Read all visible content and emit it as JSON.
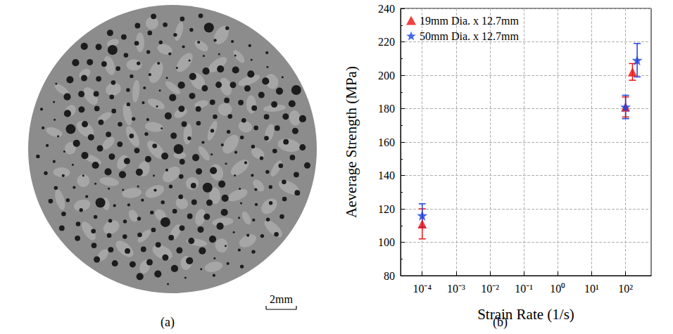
{
  "image": {
    "panel_label": "(a)",
    "scale_bar": "2mm"
  },
  "chart_data": {
    "type": "scatter",
    "panel_label": "(b)",
    "xlabel": "Strain Rate (1/s)",
    "ylabel": "Aeverage Strength (MPa)",
    "log": "x",
    "xlim": [
      2.3e-05,
      570
    ],
    "xticks": [
      {
        "value": 0.0001,
        "label": "10⁻⁴"
      },
      {
        "value": 0.001,
        "label": "10⁻³"
      },
      {
        "value": 0.01,
        "label": "10⁻²"
      },
      {
        "value": 0.1,
        "label": "10⁻¹"
      },
      {
        "value": 1,
        "label": "10⁰"
      },
      {
        "value": 10,
        "label": "10¹"
      },
      {
        "value": 100,
        "label": "10²"
      }
    ],
    "ylim": [
      80,
      240
    ],
    "yticks": [
      80,
      100,
      120,
      140,
      160,
      180,
      200,
      220,
      240
    ],
    "grid": true,
    "legend": "upper left",
    "series": [
      {
        "name": "19mm Dia. x 12.7mm",
        "color": "#ee1111",
        "marker": "triangle",
        "x": [
          0.0001,
          100,
          160
        ],
        "values": [
          111,
          181,
          202
        ],
        "errors": [
          9,
          6,
          5
        ]
      },
      {
        "name": "50mm Dia. x 12.7mm",
        "color": "#1a3fe0",
        "marker": "star",
        "x": [
          0.0001,
          100,
          220
        ],
        "values": [
          116,
          181,
          209
        ],
        "errors": [
          7,
          7,
          10
        ]
      }
    ]
  }
}
